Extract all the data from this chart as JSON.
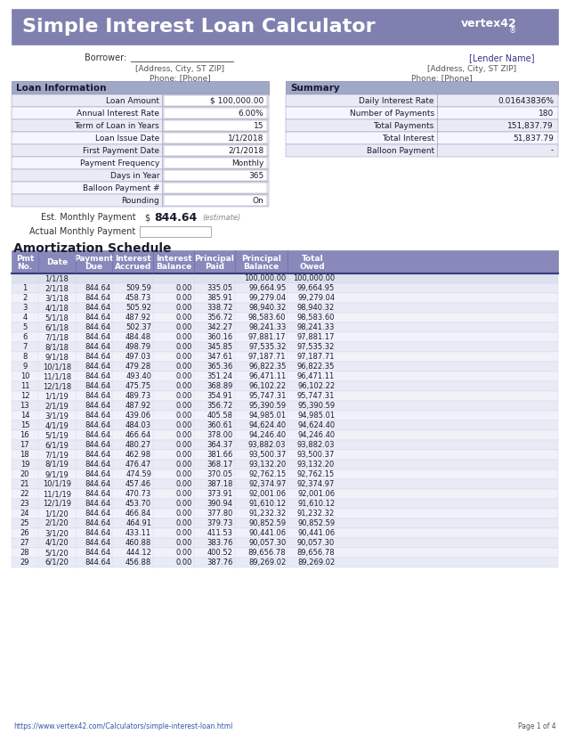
{
  "title": "Simple Interest Loan Calculator",
  "header_bg": "#8080b0",
  "header_text_color": "#FFFFFF",
  "section_header_bg": "#a0a8c8",
  "section_header_text": "#1a1a2e",
  "table_header_bg": "#8888bb",
  "table_header_text": "#FFFFFF",
  "row_bg_even": "#e8ebf5",
  "row_bg_odd": "#f5f5ff",
  "bg_color": "#FFFFFF",
  "border_color": "#8888aa",
  "loan_info_labels": [
    "Loan Amount",
    "Annual Interest Rate",
    "Term of Loan in Years",
    "Loan Issue Date",
    "First Payment Date",
    "Payment Frequency",
    "Days in Year",
    "Balloon Payment #",
    "Rounding"
  ],
  "loan_info_values": [
    "$ 100,000.00",
    "6.00%",
    "15",
    "1/1/2018",
    "2/1/2018",
    "Monthly",
    "365",
    "",
    "On"
  ],
  "summary_labels": [
    "Daily Interest Rate",
    "Number of Payments",
    "Total Payments",
    "Total Interest",
    "Balloon Payment"
  ],
  "summary_values": [
    "0.01643836%",
    "180",
    "151,837.79",
    "51,837.79",
    "-"
  ],
  "est_payment": "844.64",
  "amort_headers": [
    "Pmt\nNo.",
    "Date",
    "Payment\nDue",
    "Interest\nAccrued",
    "Interest\nBalance",
    "Principal\nPaid",
    "Principal\nBalance",
    "Total\nOwed"
  ],
  "amort_data": [
    [
      "",
      "1/1/18",
      "",
      "",
      "",
      "",
      "100,000.00",
      "100,000.00"
    ],
    [
      "1",
      "2/1/18",
      "844.64",
      "509.59",
      "0.00",
      "335.05",
      "99,664.95",
      "99,664.95"
    ],
    [
      "2",
      "3/1/18",
      "844.64",
      "458.73",
      "0.00",
      "385.91",
      "99,279.04",
      "99,279.04"
    ],
    [
      "3",
      "4/1/18",
      "844.64",
      "505.92",
      "0.00",
      "338.72",
      "98,940.32",
      "98,940.32"
    ],
    [
      "4",
      "5/1/18",
      "844.64",
      "487.92",
      "0.00",
      "356.72",
      "98,583.60",
      "98,583.60"
    ],
    [
      "5",
      "6/1/18",
      "844.64",
      "502.37",
      "0.00",
      "342.27",
      "98,241.33",
      "98,241.33"
    ],
    [
      "6",
      "7/1/18",
      "844.64",
      "484.48",
      "0.00",
      "360.16",
      "97,881.17",
      "97,881.17"
    ],
    [
      "7",
      "8/1/18",
      "844.64",
      "498.79",
      "0.00",
      "345.85",
      "97,535.32",
      "97,535.32"
    ],
    [
      "8",
      "9/1/18",
      "844.64",
      "497.03",
      "0.00",
      "347.61",
      "97,187.71",
      "97,187.71"
    ],
    [
      "9",
      "10/1/18",
      "844.64",
      "479.28",
      "0.00",
      "365.36",
      "96,822.35",
      "96,822.35"
    ],
    [
      "10",
      "11/1/18",
      "844.64",
      "493.40",
      "0.00",
      "351.24",
      "96,471.11",
      "96,471.11"
    ],
    [
      "11",
      "12/1/18",
      "844.64",
      "475.75",
      "0.00",
      "368.89",
      "96,102.22",
      "96,102.22"
    ],
    [
      "12",
      "1/1/19",
      "844.64",
      "489.73",
      "0.00",
      "354.91",
      "95,747.31",
      "95,747.31"
    ],
    [
      "13",
      "2/1/19",
      "844.64",
      "487.92",
      "0.00",
      "356.72",
      "95,390.59",
      "95,390.59"
    ],
    [
      "14",
      "3/1/19",
      "844.64",
      "439.06",
      "0.00",
      "405.58",
      "94,985.01",
      "94,985.01"
    ],
    [
      "15",
      "4/1/19",
      "844.64",
      "484.03",
      "0.00",
      "360.61",
      "94,624.40",
      "94,624.40"
    ],
    [
      "16",
      "5/1/19",
      "844.64",
      "466.64",
      "0.00",
      "378.00",
      "94,246.40",
      "94,246.40"
    ],
    [
      "17",
      "6/1/19",
      "844.64",
      "480.27",
      "0.00",
      "364.37",
      "93,882.03",
      "93,882.03"
    ],
    [
      "18",
      "7/1/19",
      "844.64",
      "462.98",
      "0.00",
      "381.66",
      "93,500.37",
      "93,500.37"
    ],
    [
      "19",
      "8/1/19",
      "844.64",
      "476.47",
      "0.00",
      "368.17",
      "93,132.20",
      "93,132.20"
    ],
    [
      "20",
      "9/1/19",
      "844.64",
      "474.59",
      "0.00",
      "370.05",
      "92,762.15",
      "92,762.15"
    ],
    [
      "21",
      "10/1/19",
      "844.64",
      "457.46",
      "0.00",
      "387.18",
      "92,374.97",
      "92,374.97"
    ],
    [
      "22",
      "11/1/19",
      "844.64",
      "470.73",
      "0.00",
      "373.91",
      "92,001.06",
      "92,001.06"
    ],
    [
      "23",
      "12/1/19",
      "844.64",
      "453.70",
      "0.00",
      "390.94",
      "91,610.12",
      "91,610.12"
    ],
    [
      "24",
      "1/1/20",
      "844.64",
      "466.84",
      "0.00",
      "377.80",
      "91,232.32",
      "91,232.32"
    ],
    [
      "25",
      "2/1/20",
      "844.64",
      "464.91",
      "0.00",
      "379.73",
      "90,852.59",
      "90,852.59"
    ],
    [
      "26",
      "3/1/20",
      "844.64",
      "433.11",
      "0.00",
      "411.53",
      "90,441.06",
      "90,441.06"
    ],
    [
      "27",
      "4/1/20",
      "844.64",
      "460.88",
      "0.00",
      "383.76",
      "90,057.30",
      "90,057.30"
    ],
    [
      "28",
      "5/1/20",
      "844.64",
      "444.12",
      "0.00",
      "400.52",
      "89,656.78",
      "89,656.78"
    ],
    [
      "29",
      "6/1/20",
      "844.64",
      "456.88",
      "0.00",
      "387.76",
      "89,269.02",
      "89,269.02"
    ]
  ],
  "footer_left": "https://www.vertex42.com/Calculators/simple-interest-loan.html",
  "footer_right": "Page 1 of 4"
}
